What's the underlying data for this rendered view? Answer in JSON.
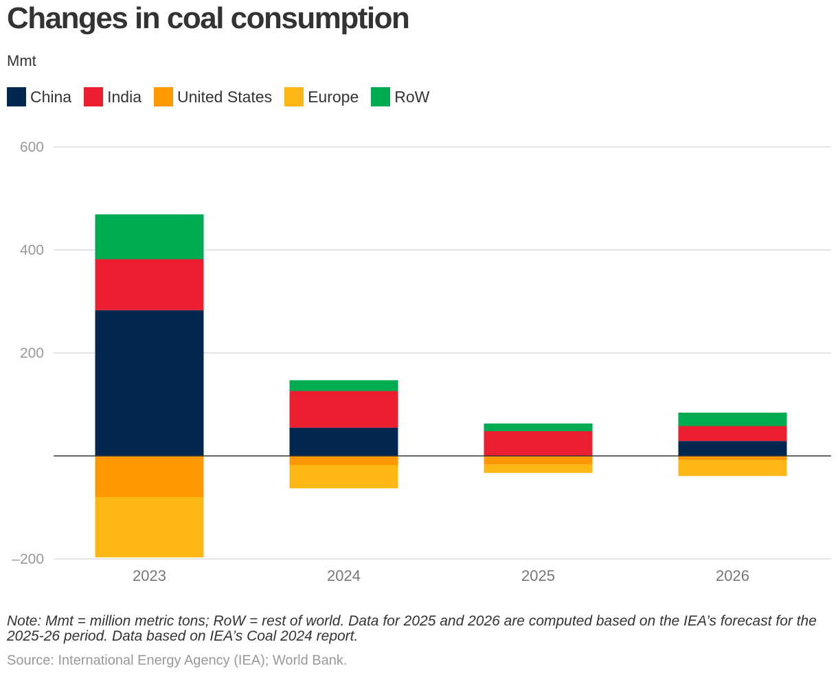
{
  "title": "Changes in coal consumption",
  "subtitle": "Mmt",
  "note": "Note: Mmt = million metric tons; RoW = rest of world. Data for 2025 and 2026 are computed based on the IEA’s forecast for the 2025-26 period. Data based on IEA’s Coal 2024 report.",
  "source": "Source: International Energy Agency (IEA); World Bank.",
  "chart_data": {
    "type": "bar",
    "stacked": true,
    "title": "Changes in coal consumption",
    "ylabel": "Mmt",
    "xlabel": "",
    "ylim": [
      -200,
      600
    ],
    "yticks": [
      600,
      400,
      200,
      -200
    ],
    "ytick_labels": [
      "600",
      "400",
      "200",
      "–200"
    ],
    "grid": true,
    "legend_position": "top-left",
    "categories": [
      "2023",
      "2024",
      "2025",
      "2026"
    ],
    "series": [
      {
        "name": "China",
        "color": "#03284f",
        "values": [
          283,
          55,
          0,
          29
        ]
      },
      {
        "name": "India",
        "color": "#eb1f30",
        "values": [
          99,
          71,
          48,
          29
        ]
      },
      {
        "name": "United States",
        "color": "#fd9800",
        "values": [
          -80,
          -18,
          -17,
          -8
        ]
      },
      {
        "name": "Europe",
        "color": "#fdb714",
        "values": [
          -117,
          -45,
          -16,
          -31
        ]
      },
      {
        "name": "RoW",
        "color": "#00ab51",
        "values": [
          87,
          21,
          15,
          26
        ]
      }
    ]
  }
}
